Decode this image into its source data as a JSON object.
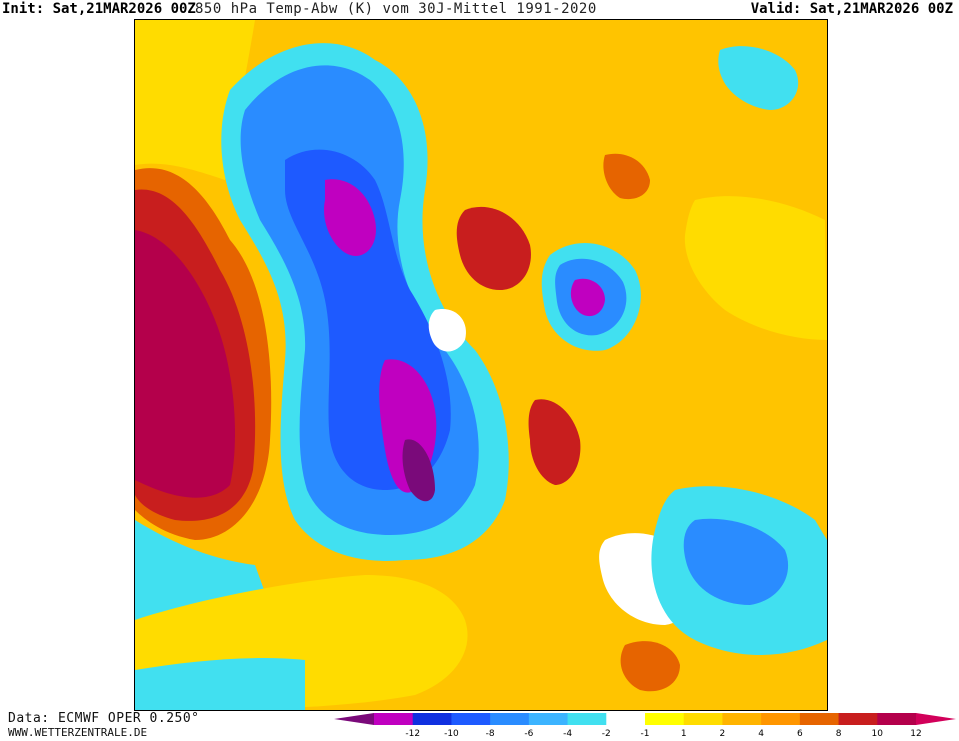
{
  "header": {
    "init": "Init: Sat,21MAR2026 00Z",
    "title": "850 hPa Temp-Abw (K) vom 30J-Mittel 1991-2020",
    "valid": "Valid: Sat,21MAR2026 00Z"
  },
  "footer": {
    "source": "Data: ECMWF OPER 0.250°",
    "website": "WWW.WETTERZENTRALE.DE"
  },
  "legend": {
    "colors": [
      "#7a0a7a",
      "#c000c0",
      "#1030e0",
      "#1e5aff",
      "#2a8cff",
      "#3cb4ff",
      "#41e0f0",
      "#ffffff",
      "#ffff00",
      "#ffdc00",
      "#ffb400",
      "#ff9600",
      "#e66400",
      "#c81e1e",
      "#b4004b",
      "#d2005a"
    ],
    "labels": [
      "-12",
      "-10",
      "-8",
      "-6",
      "-4",
      "-2",
      "-1",
      "1",
      "2",
      "4",
      "6",
      "8",
      "10",
      "12"
    ]
  },
  "map": {
    "description_colors": {
      "strong_warm": "#b4004b",
      "warm": "#ff9600",
      "mild_warm": "#ffdc00",
      "near_normal": "#ffffff",
      "mild_cold": "#41e0f0",
      "cold": "#1e5aff",
      "strong_cold": "#c000c0"
    }
  }
}
